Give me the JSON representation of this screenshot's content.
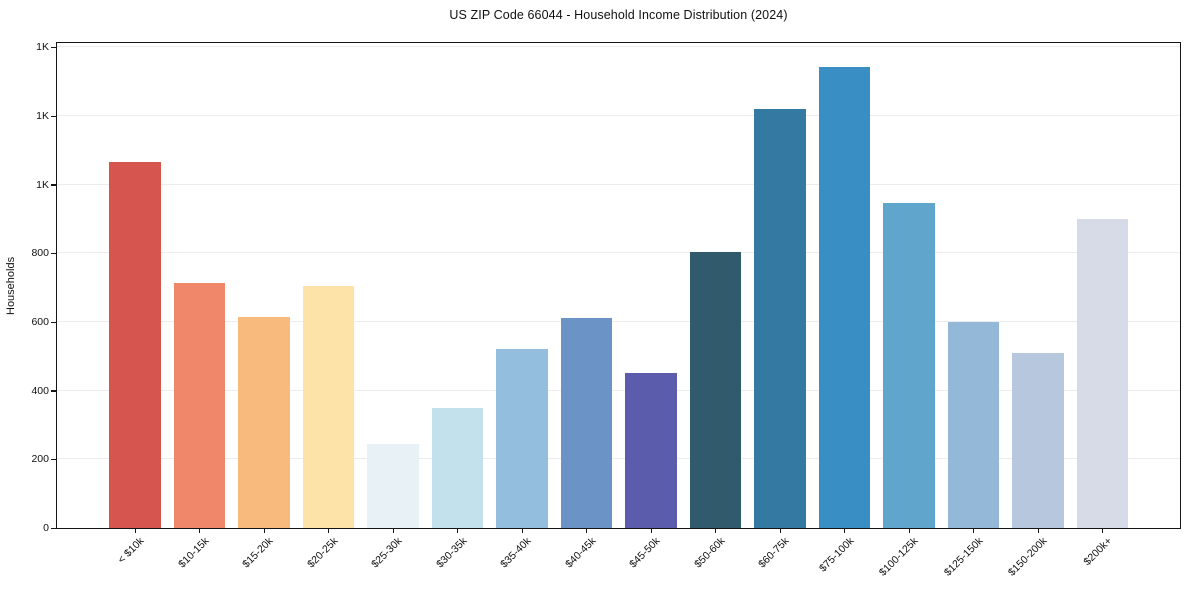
{
  "chart_data": {
    "type": "bar",
    "title": "US ZIP Code 66044 - Household Income Distribution (2024)",
    "xlabel": "",
    "ylabel": "Households",
    "categories": [
      "< $10k",
      "$10-15k",
      "$15-20k",
      "$20-25k",
      "$25-30k",
      "$30-35k",
      "$35-40k",
      "$40-45k",
      "$45-50k",
      "$50-60k",
      "$60-75k",
      "$75-100k",
      "$100-125k",
      "$125-150k",
      "$150-200k",
      "$200k+"
    ],
    "values": [
      1065,
      714,
      616,
      704,
      246,
      350,
      521,
      612,
      452,
      804,
      1220,
      1342,
      948,
      600,
      511,
      901
    ],
    "bar_colors": [
      "#d6564f",
      "#f0876a",
      "#f9bb7d",
      "#fde3a7",
      "#e8f1f5",
      "#c3e1ed",
      "#93bedd",
      "#6b93c6",
      "#5b5dac",
      "#315a6d",
      "#3379a1",
      "#398ec4",
      "#60a5cb",
      "#93b8d8",
      "#b7c8de",
      "#d7dbe8"
    ],
    "y_ticks": {
      "values": [
        0,
        200,
        400,
        600,
        800,
        1000,
        1200,
        1400
      ],
      "labels": [
        "0",
        "200",
        "400",
        "600",
        "800",
        "1K",
        "1K",
        "1K"
      ]
    },
    "ylim": [
      0,
      1413
    ],
    "grid": "horizontal",
    "gridline_color": "#ececec",
    "frame_color": "#151515",
    "background": "#ffffff",
    "legend": "none"
  }
}
